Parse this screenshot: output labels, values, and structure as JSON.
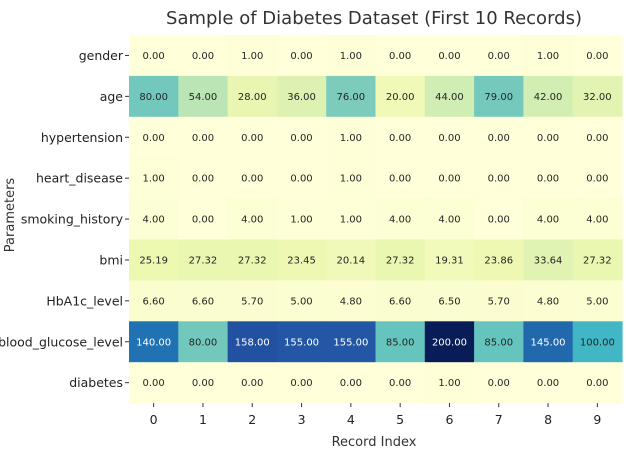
{
  "chart_data": {
    "type": "heatmap",
    "title": "Sample of Diabetes Dataset (First 10 Records)",
    "xlabel": "Record Index",
    "ylabel": "Parameters",
    "x": [
      "0",
      "1",
      "2",
      "3",
      "4",
      "5",
      "6",
      "7",
      "8",
      "9"
    ],
    "y": [
      "gender",
      "age",
      "hypertension",
      "heart_disease",
      "smoking_history",
      "bmi",
      "HbA1c_level",
      "blood_glucose_level",
      "diabetes"
    ],
    "values": [
      [
        0.0,
        0.0,
        1.0,
        0.0,
        1.0,
        0.0,
        0.0,
        0.0,
        1.0,
        0.0
      ],
      [
        80.0,
        54.0,
        28.0,
        36.0,
        76.0,
        20.0,
        44.0,
        79.0,
        42.0,
        32.0
      ],
      [
        0.0,
        0.0,
        0.0,
        0.0,
        1.0,
        0.0,
        0.0,
        0.0,
        0.0,
        0.0
      ],
      [
        1.0,
        0.0,
        0.0,
        0.0,
        1.0,
        0.0,
        0.0,
        0.0,
        0.0,
        0.0
      ],
      [
        4.0,
        0.0,
        4.0,
        1.0,
        1.0,
        4.0,
        4.0,
        0.0,
        4.0,
        4.0
      ],
      [
        25.19,
        27.32,
        27.32,
        23.45,
        20.14,
        27.32,
        19.31,
        23.86,
        33.64,
        27.32
      ],
      [
        6.6,
        6.6,
        5.7,
        5.0,
        4.8,
        6.6,
        6.5,
        5.7,
        4.8,
        5.0
      ],
      [
        140.0,
        80.0,
        158.0,
        155.0,
        155.0,
        85.0,
        200.0,
        85.0,
        145.0,
        100.0
      ],
      [
        0.0,
        0.0,
        0.0,
        0.0,
        0.0,
        0.0,
        1.0,
        0.0,
        0.0,
        0.0
      ]
    ],
    "value_format": "2 decimals",
    "colormap": "YlGnBu",
    "vmin": 0,
    "vmax": 200
  }
}
